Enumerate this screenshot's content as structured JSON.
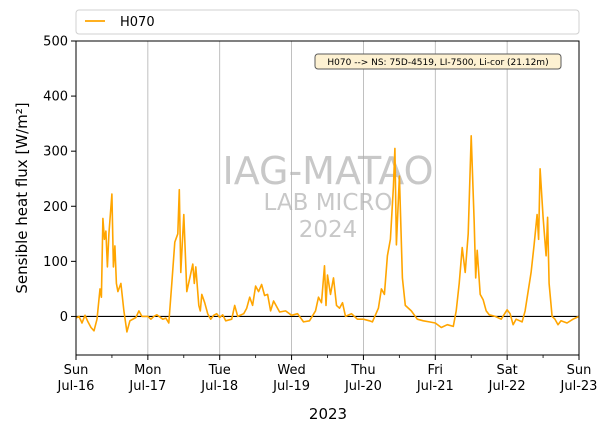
{
  "chart_data": {
    "type": "line",
    "xlabel": "2023",
    "ylabel": "Sensible heat flux [W/m²]",
    "ylim": [
      -70,
      500
    ],
    "y_ticks": [
      0,
      100,
      200,
      300,
      400,
      500
    ],
    "xlim": [
      "2023-07-16",
      "2023-07-23"
    ],
    "x_ticks": [
      {
        "day": "Sun",
        "date": "Jul-16"
      },
      {
        "day": "Mon",
        "date": "Jul-17"
      },
      {
        "day": "Tue",
        "date": "Jul-18"
      },
      {
        "day": "Wed",
        "date": "Jul-19"
      },
      {
        "day": "Thu",
        "date": "Jul-20"
      },
      {
        "day": "Fri",
        "date": "Jul-21"
      },
      {
        "day": "Sat",
        "date": "Jul-22"
      },
      {
        "day": "Sun",
        "date": "Jul-23"
      }
    ],
    "grid": "vertical at day boundaries",
    "reference_line": 0,
    "legend": {
      "placement": "top, above plot",
      "entries": [
        "H070"
      ]
    },
    "annotation": "H070 --> NS: 75D-4519, LI-7500, Li-cor (21.12m)",
    "watermark": [
      "IAG-MATAO",
      "LAB MICRO",
      "2024"
    ],
    "series": [
      {
        "name": "H070",
        "color": "#ffa500",
        "points": [
          [
            "2023-07-16 00:00",
            -3
          ],
          [
            "2023-07-16 01:00",
            0
          ],
          [
            "2023-07-16 02:00",
            -12
          ],
          [
            "2023-07-16 03:00",
            2
          ],
          [
            "2023-07-16 04:00",
            -10
          ],
          [
            "2023-07-16 05:00",
            -20
          ],
          [
            "2023-07-16 06:00",
            -26
          ],
          [
            "2023-07-16 07:00",
            -5
          ],
          [
            "2023-07-16 08:00",
            50
          ],
          [
            "2023-07-16 08:30",
            35
          ],
          [
            "2023-07-16 09:00",
            178
          ],
          [
            "2023-07-16 09:30",
            140
          ],
          [
            "2023-07-16 10:00",
            155
          ],
          [
            "2023-07-16 10:30",
            90
          ],
          [
            "2023-07-16 11:00",
            150
          ],
          [
            "2023-07-16 12:00",
            222
          ],
          [
            "2023-07-16 12:30",
            90
          ],
          [
            "2023-07-16 13:00",
            128
          ],
          [
            "2023-07-16 13:30",
            60
          ],
          [
            "2023-07-16 14:00",
            45
          ],
          [
            "2023-07-16 15:00",
            60
          ],
          [
            "2023-07-16 16:00",
            10
          ],
          [
            "2023-07-16 17:00",
            -28
          ],
          [
            "2023-07-16 18:00",
            -8
          ],
          [
            "2023-07-16 20:00",
            -2
          ],
          [
            "2023-07-16 21:00",
            10
          ],
          [
            "2023-07-16 22:00",
            0
          ],
          [
            "2023-07-17 00:00",
            0
          ],
          [
            "2023-07-17 01:00",
            -5
          ],
          [
            "2023-07-17 02:00",
            0
          ],
          [
            "2023-07-17 03:00",
            3
          ],
          [
            "2023-07-17 05:00",
            -5
          ],
          [
            "2023-07-17 06:00",
            -3
          ],
          [
            "2023-07-17 07:00",
            -12
          ],
          [
            "2023-07-17 08:00",
            60
          ],
          [
            "2023-07-17 09:00",
            135
          ],
          [
            "2023-07-17 10:00",
            150
          ],
          [
            "2023-07-17 10:30",
            230
          ],
          [
            "2023-07-17 11:00",
            80
          ],
          [
            "2023-07-17 12:00",
            185
          ],
          [
            "2023-07-17 13:00",
            45
          ],
          [
            "2023-07-17 14:00",
            70
          ],
          [
            "2023-07-17 15:00",
            95
          ],
          [
            "2023-07-17 15:30",
            60
          ],
          [
            "2023-07-17 16:00",
            90
          ],
          [
            "2023-07-17 17:00",
            20
          ],
          [
            "2023-07-17 17:30",
            10
          ],
          [
            "2023-07-17 18:00",
            40
          ],
          [
            "2023-07-17 19:00",
            25
          ],
          [
            "2023-07-17 20:00",
            5
          ],
          [
            "2023-07-17 21:00",
            -5
          ],
          [
            "2023-07-17 22:00",
            2
          ],
          [
            "2023-07-17 23:00",
            5
          ],
          [
            "2023-07-18 00:00",
            -2
          ],
          [
            "2023-07-18 01:00",
            3
          ],
          [
            "2023-07-18 02:00",
            -8
          ],
          [
            "2023-07-18 04:00",
            -5
          ],
          [
            "2023-07-18 05:00",
            20
          ],
          [
            "2023-07-18 06:00",
            0
          ],
          [
            "2023-07-18 08:00",
            5
          ],
          [
            "2023-07-18 09:00",
            15
          ],
          [
            "2023-07-18 10:00",
            35
          ],
          [
            "2023-07-18 11:00",
            20
          ],
          [
            "2023-07-18 12:00",
            55
          ],
          [
            "2023-07-18 13:00",
            45
          ],
          [
            "2023-07-18 14:00",
            58
          ],
          [
            "2023-07-18 15:00",
            38
          ],
          [
            "2023-07-18 16:00",
            40
          ],
          [
            "2023-07-18 17:00",
            10
          ],
          [
            "2023-07-18 18:00",
            28
          ],
          [
            "2023-07-18 20:00",
            8
          ],
          [
            "2023-07-18 22:00",
            10
          ],
          [
            "2023-07-19 00:00",
            2
          ],
          [
            "2023-07-19 02:00",
            5
          ],
          [
            "2023-07-19 04:00",
            -10
          ],
          [
            "2023-07-19 06:00",
            -8
          ],
          [
            "2023-07-19 08:00",
            10
          ],
          [
            "2023-07-19 09:00",
            35
          ],
          [
            "2023-07-19 10:00",
            25
          ],
          [
            "2023-07-19 11:00",
            92
          ],
          [
            "2023-07-19 11:30",
            20
          ],
          [
            "2023-07-19 12:00",
            75
          ],
          [
            "2023-07-19 13:00",
            40
          ],
          [
            "2023-07-19 14:00",
            70
          ],
          [
            "2023-07-19 15:00",
            20
          ],
          [
            "2023-07-19 16:00",
            15
          ],
          [
            "2023-07-19 17:00",
            25
          ],
          [
            "2023-07-19 18:00",
            0
          ],
          [
            "2023-07-19 20:00",
            5
          ],
          [
            "2023-07-19 22:00",
            -5
          ],
          [
            "2023-07-20 00:00",
            -5
          ],
          [
            "2023-07-20 02:00",
            -8
          ],
          [
            "2023-07-20 03:00",
            -10
          ],
          [
            "2023-07-20 05:00",
            15
          ],
          [
            "2023-07-20 06:00",
            50
          ],
          [
            "2023-07-20 07:00",
            40
          ],
          [
            "2023-07-20 08:00",
            110
          ],
          [
            "2023-07-20 09:00",
            140
          ],
          [
            "2023-07-20 10:00",
            235
          ],
          [
            "2023-07-20 10:30",
            305
          ],
          [
            "2023-07-20 11:00",
            130
          ],
          [
            "2023-07-20 12:00",
            255
          ],
          [
            "2023-07-20 13:00",
            70
          ],
          [
            "2023-07-20 14:00",
            20
          ],
          [
            "2023-07-20 16:00",
            10
          ],
          [
            "2023-07-20 18:00",
            -5
          ],
          [
            "2023-07-20 20:00",
            -8
          ],
          [
            "2023-07-20 22:00",
            -10
          ],
          [
            "2023-07-21 00:00",
            -12
          ],
          [
            "2023-07-21 02:00",
            -20
          ],
          [
            "2023-07-21 04:00",
            -15
          ],
          [
            "2023-07-21 06:00",
            -18
          ],
          [
            "2023-07-21 07:00",
            10
          ],
          [
            "2023-07-21 08:00",
            60
          ],
          [
            "2023-07-21 09:00",
            125
          ],
          [
            "2023-07-21 10:00",
            80
          ],
          [
            "2023-07-21 11:00",
            150
          ],
          [
            "2023-07-21 12:00",
            328
          ],
          [
            "2023-07-21 13:00",
            170
          ],
          [
            "2023-07-21 13:30",
            70
          ],
          [
            "2023-07-21 14:00",
            120
          ],
          [
            "2023-07-21 15:00",
            40
          ],
          [
            "2023-07-21 16:00",
            30
          ],
          [
            "2023-07-21 17:00",
            10
          ],
          [
            "2023-07-21 18:00",
            3
          ],
          [
            "2023-07-21 20:00",
            0
          ],
          [
            "2023-07-21 22:00",
            -5
          ],
          [
            "2023-07-22 00:00",
            12
          ],
          [
            "2023-07-22 01:00",
            5
          ],
          [
            "2023-07-22 02:00",
            -15
          ],
          [
            "2023-07-22 03:00",
            -5
          ],
          [
            "2023-07-22 05:00",
            -10
          ],
          [
            "2023-07-22 06:00",
            10
          ],
          [
            "2023-07-22 08:00",
            80
          ],
          [
            "2023-07-22 09:00",
            130
          ],
          [
            "2023-07-22 10:00",
            185
          ],
          [
            "2023-07-22 10:30",
            140
          ],
          [
            "2023-07-22 11:00",
            268
          ],
          [
            "2023-07-22 12:00",
            180
          ],
          [
            "2023-07-22 13:00",
            110
          ],
          [
            "2023-07-22 13:30",
            180
          ],
          [
            "2023-07-22 14:00",
            60
          ],
          [
            "2023-07-22 15:00",
            0
          ],
          [
            "2023-07-22 16:00",
            -5
          ],
          [
            "2023-07-22 17:00",
            -15
          ],
          [
            "2023-07-22 18:00",
            -8
          ],
          [
            "2023-07-22 20:00",
            -12
          ],
          [
            "2023-07-22 22:00",
            -5
          ],
          [
            "2023-07-23 00:00",
            0
          ]
        ]
      }
    ]
  }
}
